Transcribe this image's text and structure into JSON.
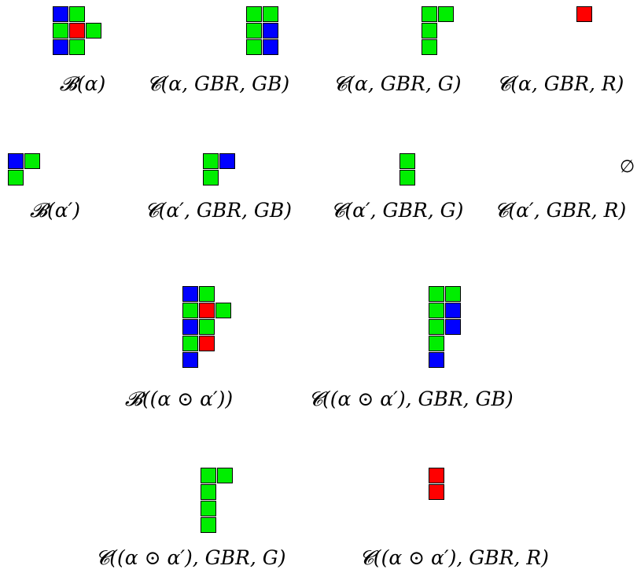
{
  "colors": {
    "G": "#00ee00",
    "B": "#0000ff",
    "R": "#ff0000"
  },
  "empty_symbol": "∅",
  "rows": [
    {
      "figures": [
        {
          "caption": "𝓑(α)",
          "cells": [
            [
              0,
              0,
              "B"
            ],
            [
              1,
              0,
              "G"
            ],
            [
              0,
              1,
              "G"
            ],
            [
              1,
              1,
              "R"
            ],
            [
              2,
              1,
              "G"
            ],
            [
              0,
              2,
              "B"
            ],
            [
              1,
              2,
              "G"
            ]
          ]
        },
        {
          "caption": "𝓒(α, GBR, GB)",
          "cells": [
            [
              0,
              0,
              "G"
            ],
            [
              1,
              0,
              "G"
            ],
            [
              0,
              1,
              "G"
            ],
            [
              1,
              1,
              "B"
            ],
            [
              0,
              2,
              "G"
            ],
            [
              1,
              2,
              "B"
            ]
          ]
        },
        {
          "caption": "𝓒(α, GBR, G)",
          "cells": [
            [
              0,
              0,
              "G"
            ],
            [
              1,
              0,
              "G"
            ],
            [
              0,
              1,
              "G"
            ],
            [
              0,
              2,
              "G"
            ]
          ]
        },
        {
          "caption": "𝓒(α, GBR, R)",
          "cells": [
            [
              0,
              0,
              "R"
            ]
          ]
        }
      ]
    },
    {
      "figures": [
        {
          "caption": "𝓑(α′)",
          "cells": [
            [
              0,
              0,
              "B"
            ],
            [
              1,
              0,
              "G"
            ],
            [
              0,
              1,
              "G"
            ]
          ]
        },
        {
          "caption": "𝓒(α′, GBR, GB)",
          "cells": [
            [
              0,
              0,
              "G"
            ],
            [
              1,
              0,
              "B"
            ],
            [
              0,
              1,
              "G"
            ]
          ]
        },
        {
          "caption": "𝓒(α′, GBR, G)",
          "cells": [
            [
              0,
              0,
              "G"
            ],
            [
              0,
              1,
              "G"
            ]
          ]
        },
        {
          "caption": "𝓒(α′, GBR, R)",
          "cells": [],
          "empty": true
        }
      ]
    },
    {
      "figures": [
        {
          "caption": "𝓑((α ⊙ α′))",
          "cells": [
            [
              0,
              0,
              "B"
            ],
            [
              1,
              0,
              "G"
            ],
            [
              0,
              1,
              "G"
            ],
            [
              1,
              1,
              "R"
            ],
            [
              2,
              1,
              "G"
            ],
            [
              0,
              2,
              "B"
            ],
            [
              1,
              2,
              "G"
            ],
            [
              0,
              3,
              "G"
            ],
            [
              1,
              3,
              "R"
            ],
            [
              0,
              4,
              "B"
            ]
          ]
        },
        {
          "caption": "𝓒((α ⊙ α′), GBR, GB)",
          "cells": [
            [
              0,
              0,
              "G"
            ],
            [
              1,
              0,
              "G"
            ],
            [
              0,
              1,
              "G"
            ],
            [
              1,
              1,
              "B"
            ],
            [
              0,
              2,
              "G"
            ],
            [
              1,
              2,
              "B"
            ],
            [
              0,
              3,
              "G"
            ],
            [
              0,
              4,
              "B"
            ]
          ]
        }
      ]
    },
    {
      "figures": [
        {
          "caption": "𝓒((α ⊙ α′), GBR, G)",
          "cells": [
            [
              0,
              0,
              "G"
            ],
            [
              1,
              0,
              "G"
            ],
            [
              0,
              1,
              "G"
            ],
            [
              0,
              2,
              "G"
            ],
            [
              0,
              3,
              "G"
            ]
          ]
        },
        {
          "caption": "𝓒((α ⊙ α′), GBR, R)",
          "cells": [
            [
              0,
              0,
              "R"
            ],
            [
              0,
              1,
              "R"
            ]
          ]
        }
      ]
    }
  ]
}
